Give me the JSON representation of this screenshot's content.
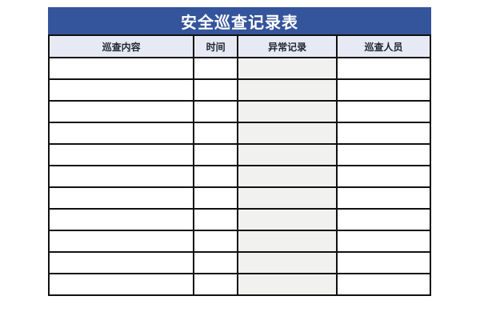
{
  "title": "安全巡查记录表",
  "table": {
    "columns": [
      {
        "id": "inspection-content",
        "label": "巡查内容"
      },
      {
        "id": "time",
        "label": "时间"
      },
      {
        "id": "abnormal-record",
        "label": "异常记录"
      },
      {
        "id": "inspector",
        "label": "巡查人员"
      }
    ],
    "row_count": 11,
    "cells_empty": true
  },
  "colors": {
    "title_bar_bg": "#34549B",
    "title_text": "#FFFFFF",
    "header_row_bg": "#E7EAF4",
    "abnormal_column_bg": "#F1F1EF",
    "border": "#111111",
    "page_bg": "#FFFFFF"
  }
}
